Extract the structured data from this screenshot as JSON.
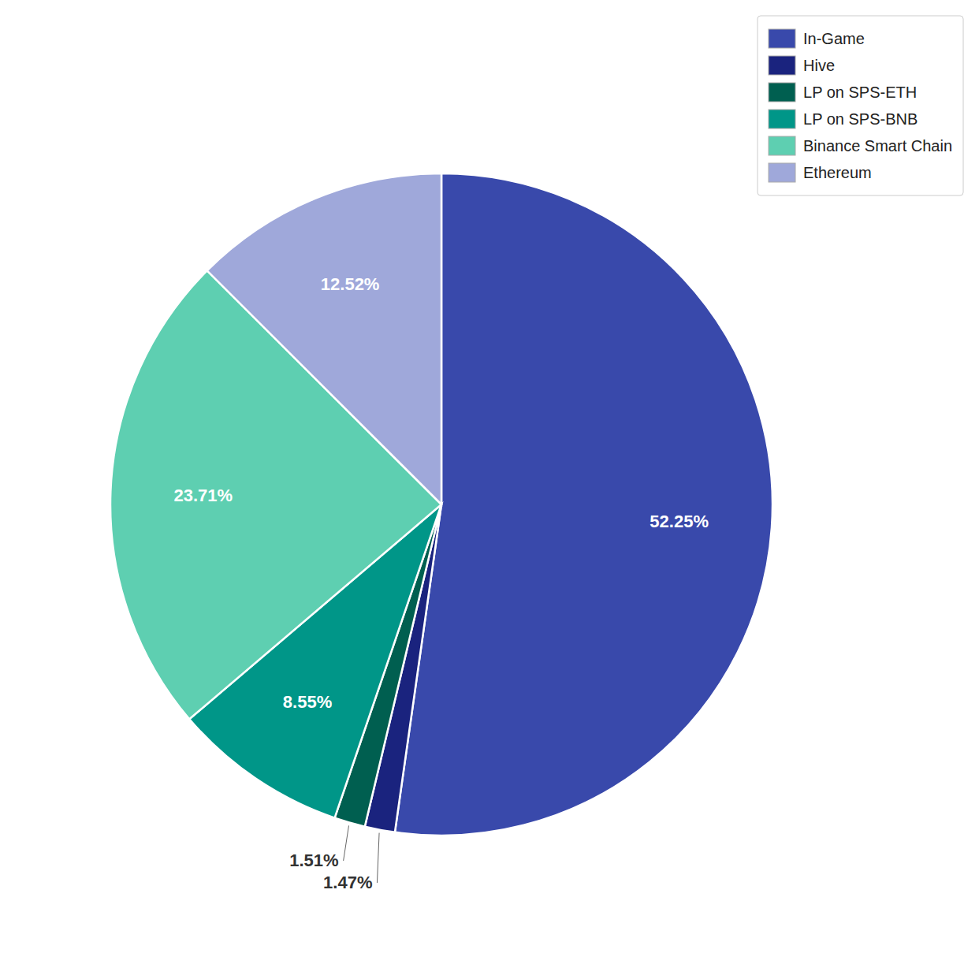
{
  "chart_data": {
    "type": "pie",
    "categories": [
      "In-Game",
      "Hive",
      "LP on SPS-ETH",
      "LP on SPS-BNB",
      "Binance Smart Chain",
      "Ethereum"
    ],
    "values": [
      52.25,
      1.47,
      1.51,
      8.55,
      23.71,
      12.52
    ],
    "value_labels": [
      "52.25%",
      "1.47%",
      "1.51%",
      "8.55%",
      "23.71%",
      "12.52%"
    ],
    "colors": [
      "#3949ab",
      "#1a237e",
      "#005f50",
      "#009688",
      "#5ecfb1",
      "#9fa8da"
    ],
    "data_labels": true,
    "legend": "upper right"
  }
}
